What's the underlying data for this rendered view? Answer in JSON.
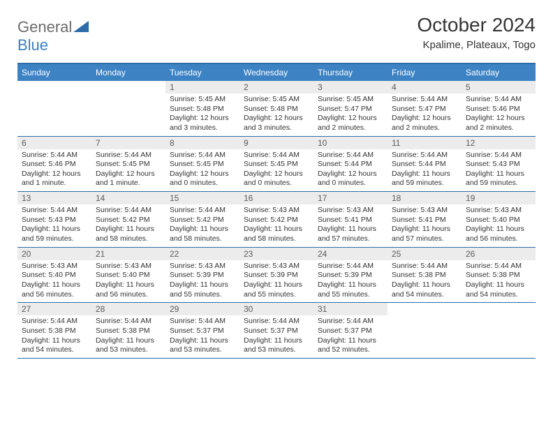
{
  "logo": {
    "part1": "General",
    "part2": "Blue"
  },
  "title": "October 2024",
  "subtitle": "Kpalime, Plateaux, Togo",
  "header_bg": "#3d83c4",
  "border_color": "#2d6aa8",
  "daynum_bg": "#ececec",
  "days": [
    "Sunday",
    "Monday",
    "Tuesday",
    "Wednesday",
    "Thursday",
    "Friday",
    "Saturday"
  ],
  "weeks": [
    [
      {
        "n": "",
        "sr": "",
        "ss": "",
        "dl": ""
      },
      {
        "n": "",
        "sr": "",
        "ss": "",
        "dl": ""
      },
      {
        "n": "1",
        "sr": "Sunrise: 5:45 AM",
        "ss": "Sunset: 5:48 PM",
        "dl": "Daylight: 12 hours and 3 minutes."
      },
      {
        "n": "2",
        "sr": "Sunrise: 5:45 AM",
        "ss": "Sunset: 5:48 PM",
        "dl": "Daylight: 12 hours and 3 minutes."
      },
      {
        "n": "3",
        "sr": "Sunrise: 5:45 AM",
        "ss": "Sunset: 5:47 PM",
        "dl": "Daylight: 12 hours and 2 minutes."
      },
      {
        "n": "4",
        "sr": "Sunrise: 5:44 AM",
        "ss": "Sunset: 5:47 PM",
        "dl": "Daylight: 12 hours and 2 minutes."
      },
      {
        "n": "5",
        "sr": "Sunrise: 5:44 AM",
        "ss": "Sunset: 5:46 PM",
        "dl": "Daylight: 12 hours and 2 minutes."
      }
    ],
    [
      {
        "n": "6",
        "sr": "Sunrise: 5:44 AM",
        "ss": "Sunset: 5:46 PM",
        "dl": "Daylight: 12 hours and 1 minute."
      },
      {
        "n": "7",
        "sr": "Sunrise: 5:44 AM",
        "ss": "Sunset: 5:45 PM",
        "dl": "Daylight: 12 hours and 1 minute."
      },
      {
        "n": "8",
        "sr": "Sunrise: 5:44 AM",
        "ss": "Sunset: 5:45 PM",
        "dl": "Daylight: 12 hours and 0 minutes."
      },
      {
        "n": "9",
        "sr": "Sunrise: 5:44 AM",
        "ss": "Sunset: 5:45 PM",
        "dl": "Daylight: 12 hours and 0 minutes."
      },
      {
        "n": "10",
        "sr": "Sunrise: 5:44 AM",
        "ss": "Sunset: 5:44 PM",
        "dl": "Daylight: 12 hours and 0 minutes."
      },
      {
        "n": "11",
        "sr": "Sunrise: 5:44 AM",
        "ss": "Sunset: 5:44 PM",
        "dl": "Daylight: 11 hours and 59 minutes."
      },
      {
        "n": "12",
        "sr": "Sunrise: 5:44 AM",
        "ss": "Sunset: 5:43 PM",
        "dl": "Daylight: 11 hours and 59 minutes."
      }
    ],
    [
      {
        "n": "13",
        "sr": "Sunrise: 5:44 AM",
        "ss": "Sunset: 5:43 PM",
        "dl": "Daylight: 11 hours and 59 minutes."
      },
      {
        "n": "14",
        "sr": "Sunrise: 5:44 AM",
        "ss": "Sunset: 5:42 PM",
        "dl": "Daylight: 11 hours and 58 minutes."
      },
      {
        "n": "15",
        "sr": "Sunrise: 5:44 AM",
        "ss": "Sunset: 5:42 PM",
        "dl": "Daylight: 11 hours and 58 minutes."
      },
      {
        "n": "16",
        "sr": "Sunrise: 5:43 AM",
        "ss": "Sunset: 5:42 PM",
        "dl": "Daylight: 11 hours and 58 minutes."
      },
      {
        "n": "17",
        "sr": "Sunrise: 5:43 AM",
        "ss": "Sunset: 5:41 PM",
        "dl": "Daylight: 11 hours and 57 minutes."
      },
      {
        "n": "18",
        "sr": "Sunrise: 5:43 AM",
        "ss": "Sunset: 5:41 PM",
        "dl": "Daylight: 11 hours and 57 minutes."
      },
      {
        "n": "19",
        "sr": "Sunrise: 5:43 AM",
        "ss": "Sunset: 5:40 PM",
        "dl": "Daylight: 11 hours and 56 minutes."
      }
    ],
    [
      {
        "n": "20",
        "sr": "Sunrise: 5:43 AM",
        "ss": "Sunset: 5:40 PM",
        "dl": "Daylight: 11 hours and 56 minutes."
      },
      {
        "n": "21",
        "sr": "Sunrise: 5:43 AM",
        "ss": "Sunset: 5:40 PM",
        "dl": "Daylight: 11 hours and 56 minutes."
      },
      {
        "n": "22",
        "sr": "Sunrise: 5:43 AM",
        "ss": "Sunset: 5:39 PM",
        "dl": "Daylight: 11 hours and 55 minutes."
      },
      {
        "n": "23",
        "sr": "Sunrise: 5:43 AM",
        "ss": "Sunset: 5:39 PM",
        "dl": "Daylight: 11 hours and 55 minutes."
      },
      {
        "n": "24",
        "sr": "Sunrise: 5:44 AM",
        "ss": "Sunset: 5:39 PM",
        "dl": "Daylight: 11 hours and 55 minutes."
      },
      {
        "n": "25",
        "sr": "Sunrise: 5:44 AM",
        "ss": "Sunset: 5:38 PM",
        "dl": "Daylight: 11 hours and 54 minutes."
      },
      {
        "n": "26",
        "sr": "Sunrise: 5:44 AM",
        "ss": "Sunset: 5:38 PM",
        "dl": "Daylight: 11 hours and 54 minutes."
      }
    ],
    [
      {
        "n": "27",
        "sr": "Sunrise: 5:44 AM",
        "ss": "Sunset: 5:38 PM",
        "dl": "Daylight: 11 hours and 54 minutes."
      },
      {
        "n": "28",
        "sr": "Sunrise: 5:44 AM",
        "ss": "Sunset: 5:38 PM",
        "dl": "Daylight: 11 hours and 53 minutes."
      },
      {
        "n": "29",
        "sr": "Sunrise: 5:44 AM",
        "ss": "Sunset: 5:37 PM",
        "dl": "Daylight: 11 hours and 53 minutes."
      },
      {
        "n": "30",
        "sr": "Sunrise: 5:44 AM",
        "ss": "Sunset: 5:37 PM",
        "dl": "Daylight: 11 hours and 53 minutes."
      },
      {
        "n": "31",
        "sr": "Sunrise: 5:44 AM",
        "ss": "Sunset: 5:37 PM",
        "dl": "Daylight: 11 hours and 52 minutes."
      },
      {
        "n": "",
        "sr": "",
        "ss": "",
        "dl": ""
      },
      {
        "n": "",
        "sr": "",
        "ss": "",
        "dl": ""
      }
    ]
  ]
}
